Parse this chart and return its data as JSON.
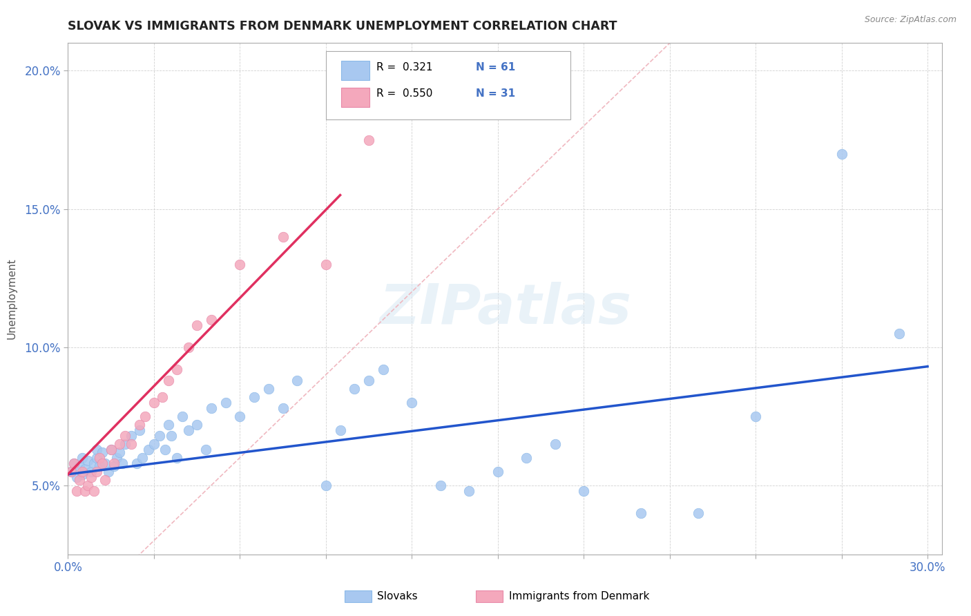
{
  "title": "SLOVAK VS IMMIGRANTS FROM DENMARK UNEMPLOYMENT CORRELATION CHART",
  "source_text": "Source: ZipAtlas.com",
  "ylabel": "Unemployment",
  "xlim": [
    0.0,
    0.305
  ],
  "ylim": [
    0.025,
    0.21
  ],
  "yticks": [
    0.05,
    0.1,
    0.15,
    0.2
  ],
  "yticklabels": [
    "5.0%",
    "10.0%",
    "15.0%",
    "20.0%"
  ],
  "xtick_positions": [
    0.0,
    0.03,
    0.06,
    0.09,
    0.12,
    0.15,
    0.18,
    0.21,
    0.24,
    0.27,
    0.3
  ],
  "color_blue": "#a8c8f0",
  "color_pink": "#f4a8bc",
  "color_blue_line": "#2255cc",
  "color_pink_line": "#e03060",
  "color_diag": "#f0b8c0",
  "watermark": "ZIPatlas",
  "legend_r1": "R =  0.321",
  "legend_n1": "N = 61",
  "legend_r2": "R =  0.550",
  "legend_n2": "N = 31",
  "blue_line_x": [
    0.0,
    0.3
  ],
  "blue_line_y": [
    0.054,
    0.093
  ],
  "pink_line_x": [
    0.0,
    0.095
  ],
  "pink_line_y": [
    0.054,
    0.155
  ]
}
